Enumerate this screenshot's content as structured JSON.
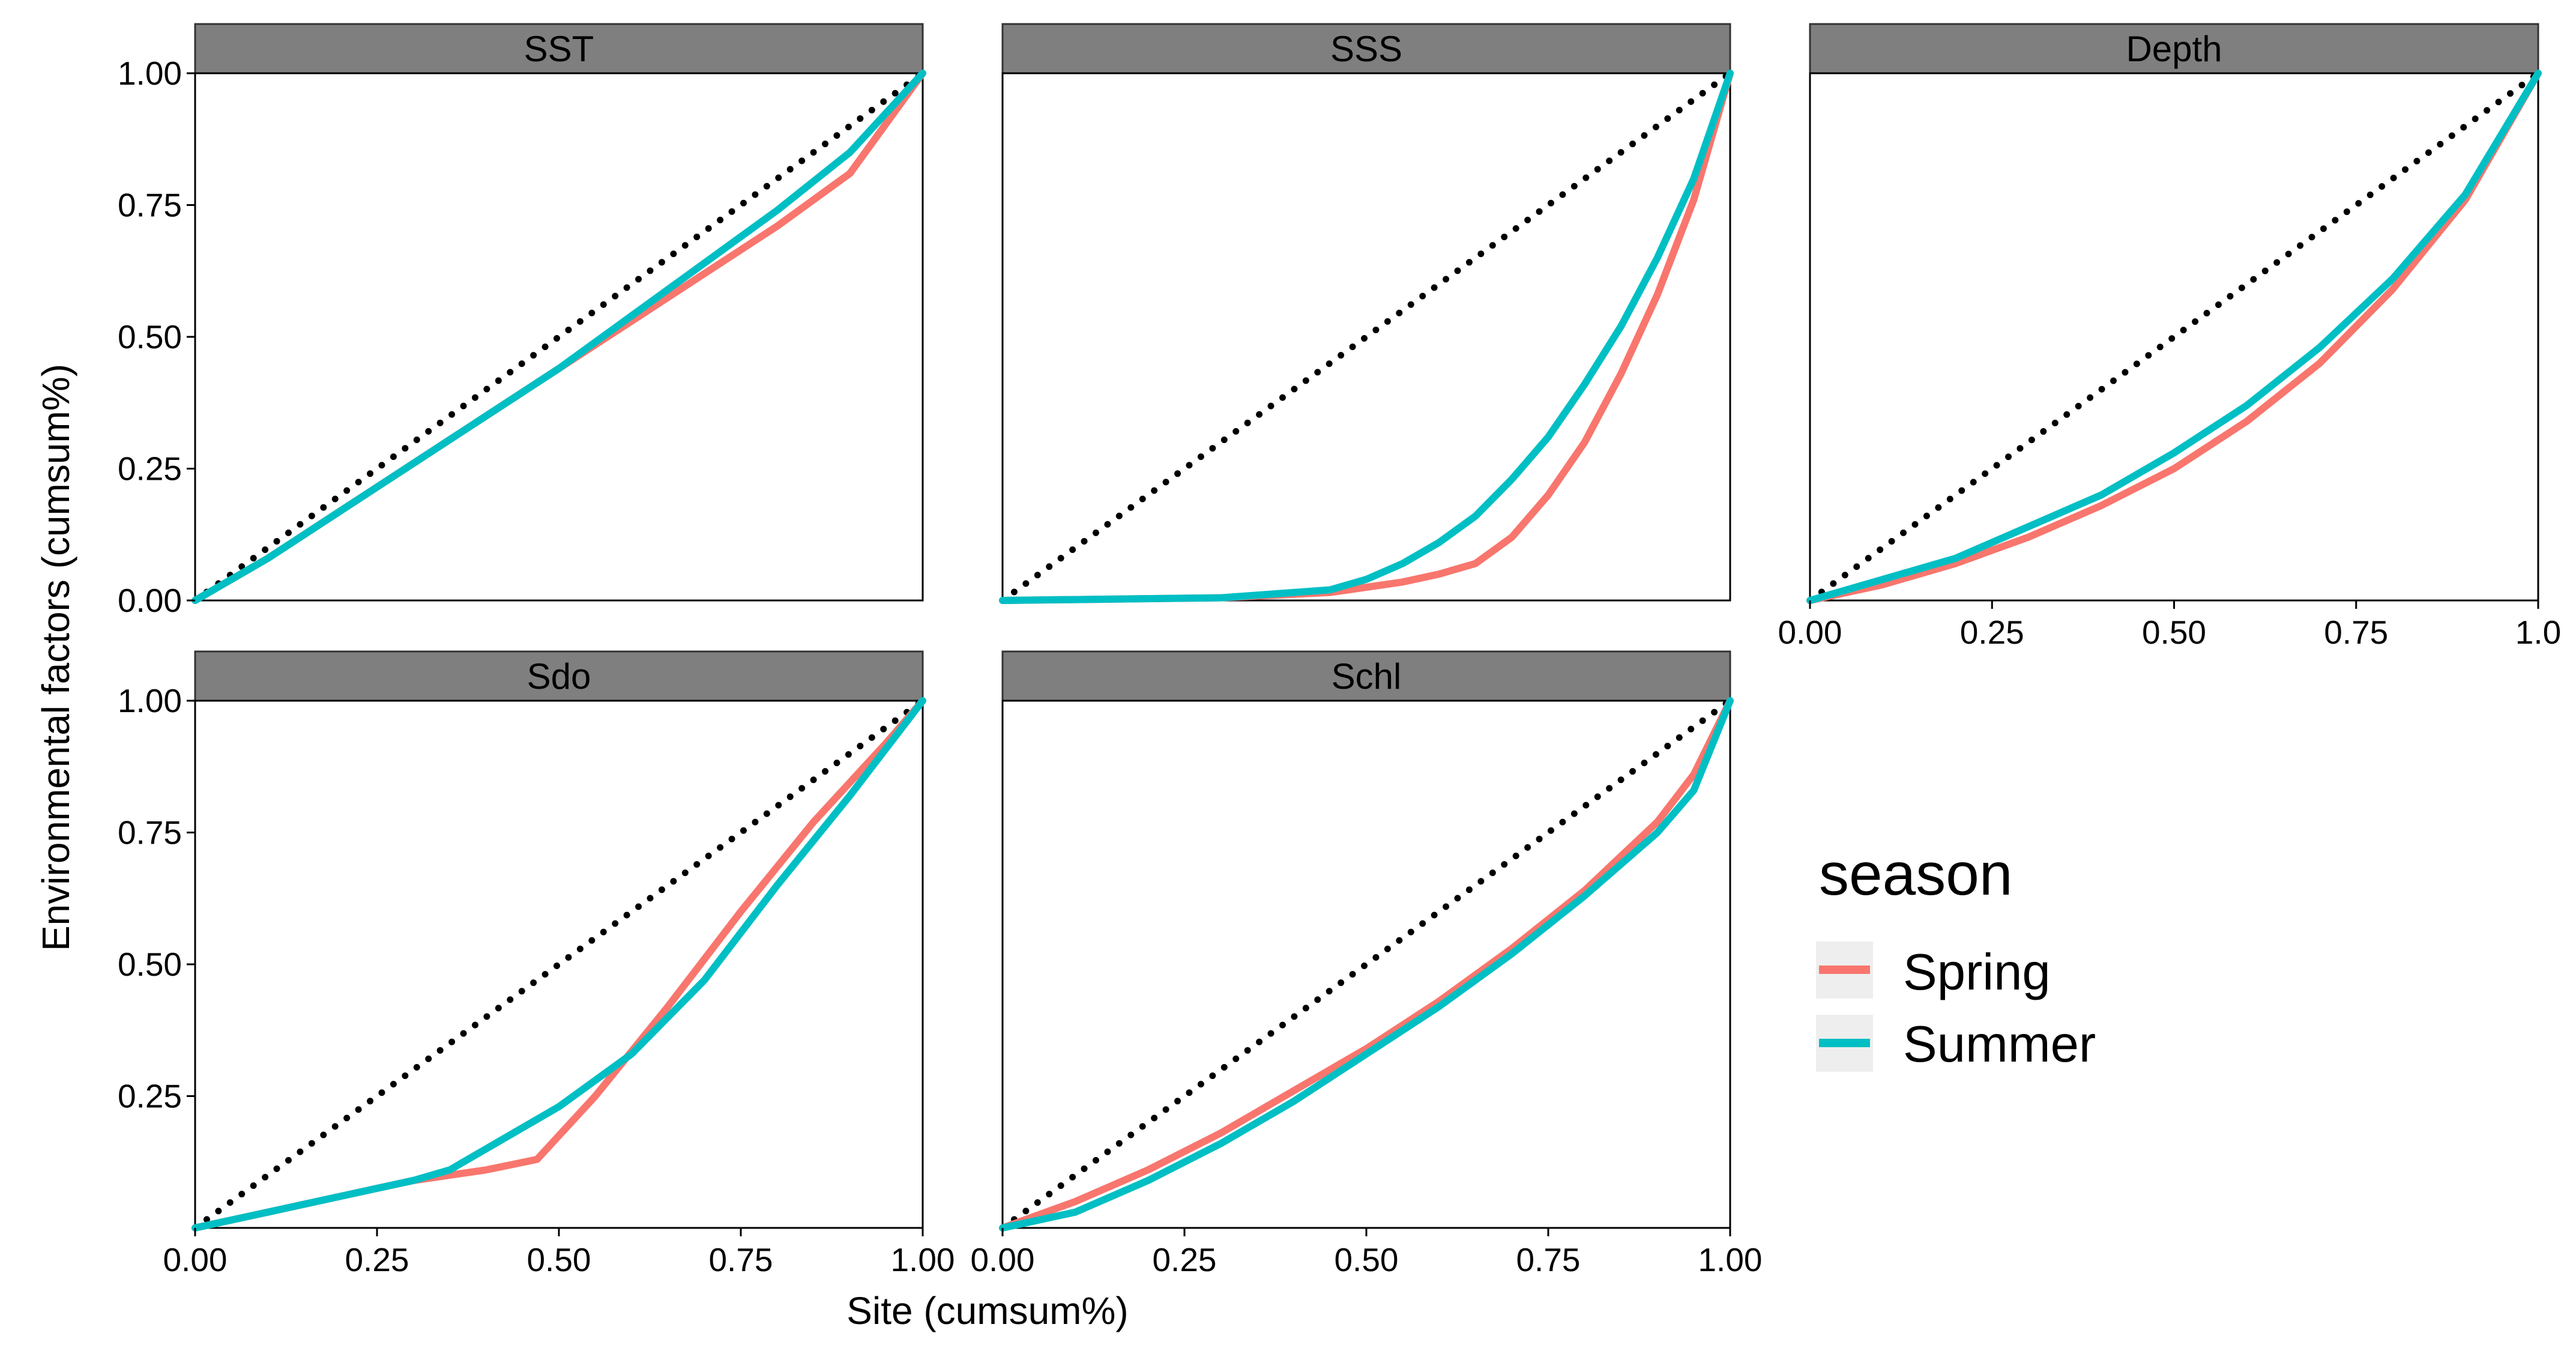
{
  "chart_data": {
    "type": "line",
    "xlabel": "Site (cumsum%)",
    "ylabel": "Environmental factors (cumsum%)",
    "xlim": [
      0,
      1
    ],
    "ylim": [
      0,
      1
    ],
    "grid": false,
    "legend": {
      "title": "season",
      "placement": "right",
      "entries": [
        {
          "name": "Spring",
          "color": "#F8766D"
        },
        {
          "name": "Summer",
          "color": "#00BFC4"
        }
      ]
    },
    "reference_line": {
      "style": "dotted",
      "color": "#000000",
      "x": [
        0,
        1
      ],
      "y": [
        0,
        1
      ]
    },
    "panels": [
      {
        "title": "SST",
        "y_ticks": [
          "0.00",
          "0.25",
          "0.50",
          "0.75",
          "1.00"
        ],
        "x_ticks": [],
        "series": [
          {
            "name": "Spring",
            "x": [
              0,
              0.1,
              0.2,
              0.3,
              0.4,
              0.5,
              0.6,
              0.7,
              0.8,
              0.9,
              1.0
            ],
            "y": [
              0,
              0.08,
              0.17,
              0.26,
              0.35,
              0.44,
              0.53,
              0.62,
              0.71,
              0.81,
              1.0
            ]
          },
          {
            "name": "Summer",
            "x": [
              0,
              0.1,
              0.2,
              0.3,
              0.4,
              0.5,
              0.6,
              0.7,
              0.8,
              0.9,
              1.0
            ],
            "y": [
              0,
              0.08,
              0.17,
              0.26,
              0.35,
              0.44,
              0.54,
              0.64,
              0.74,
              0.85,
              1.0
            ]
          }
        ]
      },
      {
        "title": "SSS",
        "y_ticks": [],
        "x_ticks": [],
        "series": [
          {
            "name": "Spring",
            "x": [
              0,
              0.3,
              0.45,
              0.55,
              0.6,
              0.65,
              0.7,
              0.75,
              0.8,
              0.85,
              0.9,
              0.95,
              1.0
            ],
            "y": [
              0,
              0.005,
              0.015,
              0.035,
              0.05,
              0.07,
              0.12,
              0.2,
              0.3,
              0.43,
              0.58,
              0.76,
              1.0
            ]
          },
          {
            "name": "Summer",
            "x": [
              0,
              0.3,
              0.45,
              0.5,
              0.55,
              0.6,
              0.65,
              0.7,
              0.75,
              0.8,
              0.85,
              0.9,
              0.95,
              1.0
            ],
            "y": [
              0,
              0.005,
              0.02,
              0.04,
              0.07,
              0.11,
              0.16,
              0.23,
              0.31,
              0.41,
              0.52,
              0.65,
              0.8,
              1.0
            ]
          }
        ]
      },
      {
        "title": "Depth",
        "y_ticks": [],
        "x_ticks": [
          "0.00",
          "0.25",
          "0.50",
          "0.75",
          "1.0"
        ],
        "series": [
          {
            "name": "Spring",
            "x": [
              0,
              0.1,
              0.2,
              0.3,
              0.4,
              0.5,
              0.6,
              0.7,
              0.8,
              0.9,
              1.0
            ],
            "y": [
              0,
              0.03,
              0.07,
              0.12,
              0.18,
              0.25,
              0.34,
              0.45,
              0.59,
              0.76,
              1.0
            ]
          },
          {
            "name": "Summer",
            "x": [
              0,
              0.1,
              0.2,
              0.3,
              0.4,
              0.5,
              0.6,
              0.7,
              0.8,
              0.9,
              1.0
            ],
            "y": [
              0,
              0.04,
              0.08,
              0.14,
              0.2,
              0.28,
              0.37,
              0.48,
              0.61,
              0.77,
              1.0
            ]
          }
        ]
      },
      {
        "title": "Sdo",
        "y_ticks": [
          "1.00",
          "0.75",
          "0.50",
          "0.25"
        ],
        "x_ticks": [
          "0.00",
          "0.25",
          "0.50",
          "0.75",
          "1.00"
        ],
        "series": [
          {
            "name": "Spring",
            "x": [
              0,
              0.1,
              0.2,
              0.3,
              0.4,
              0.47,
              0.55,
              0.65,
              0.75,
              0.85,
              0.95,
              1.0
            ],
            "y": [
              0,
              0.03,
              0.06,
              0.09,
              0.11,
              0.13,
              0.25,
              0.42,
              0.6,
              0.77,
              0.92,
              1.0
            ]
          },
          {
            "name": "Summer",
            "x": [
              0,
              0.1,
              0.2,
              0.3,
              0.35,
              0.4,
              0.5,
              0.6,
              0.7,
              0.8,
              0.9,
              1.0
            ],
            "y": [
              0,
              0.03,
              0.06,
              0.09,
              0.11,
              0.15,
              0.23,
              0.33,
              0.47,
              0.65,
              0.82,
              1.0
            ]
          }
        ]
      },
      {
        "title": "Schl",
        "y_ticks": [],
        "x_ticks": [
          "0.00",
          "0.25",
          "0.50",
          "0.75",
          "1.00"
        ],
        "series": [
          {
            "name": "Spring",
            "x": [
              0,
              0.1,
              0.2,
              0.3,
              0.4,
              0.5,
              0.6,
              0.7,
              0.8,
              0.9,
              0.95,
              1.0
            ],
            "y": [
              0,
              0.05,
              0.11,
              0.18,
              0.26,
              0.34,
              0.43,
              0.53,
              0.64,
              0.77,
              0.86,
              1.0
            ]
          },
          {
            "name": "Summer",
            "x": [
              0,
              0.1,
              0.2,
              0.3,
              0.4,
              0.5,
              0.6,
              0.7,
              0.8,
              0.9,
              0.95,
              1.0
            ],
            "y": [
              0,
              0.03,
              0.09,
              0.16,
              0.24,
              0.33,
              0.42,
              0.52,
              0.63,
              0.75,
              0.83,
              1.0
            ]
          }
        ]
      }
    ]
  }
}
